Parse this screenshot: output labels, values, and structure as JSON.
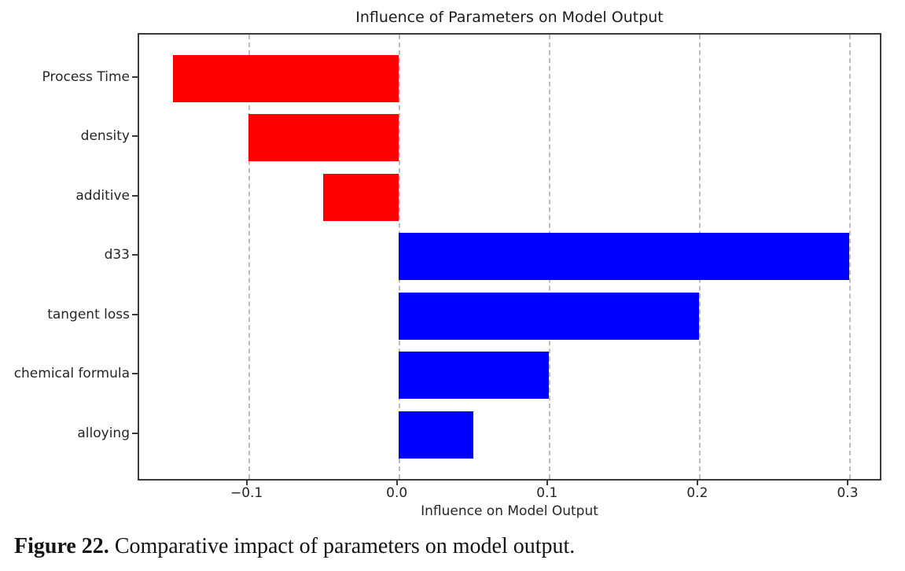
{
  "chart_data": {
    "type": "bar",
    "orientation": "horizontal",
    "title": "Influence of Parameters on Model Output",
    "xlabel": "Influence on Model Output",
    "ylabel": "",
    "categories": [
      "Process Time",
      "density",
      "additive",
      "d33",
      "tangent loss",
      "chemical formula",
      "alloying"
    ],
    "values": [
      -0.15,
      -0.1,
      -0.05,
      0.3,
      0.2,
      0.1,
      0.05
    ],
    "negative_color": "#ff0000",
    "positive_color": "#0000ff",
    "xlim": [
      -0.1725,
      0.3225
    ],
    "xticks": [
      -0.1,
      0.0,
      0.1,
      0.2,
      0.3
    ],
    "xtick_labels": [
      "−0.1",
      "0.0",
      "0.1",
      "0.2",
      "0.3"
    ],
    "grid": "vertical-dashed",
    "gridline_color": "#bdbdbd",
    "legend": "none",
    "background": "#ffffff"
  },
  "caption": {
    "label": "Figure 22.",
    "text": " Comparative impact of parameters on model output."
  }
}
